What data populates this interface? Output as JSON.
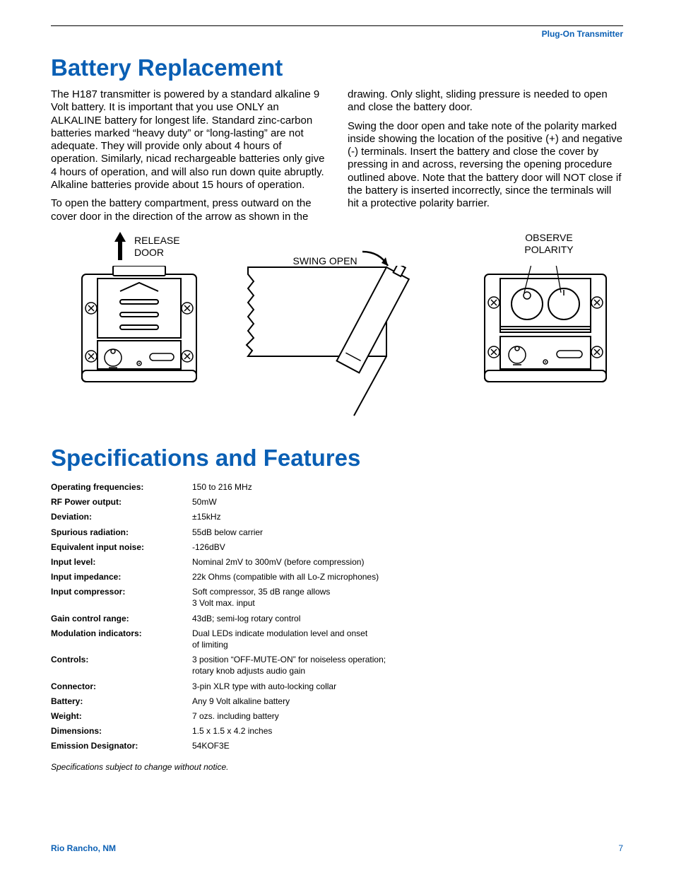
{
  "colors": {
    "accent": "#0a5fb4",
    "text": "#000000",
    "bg": "#ffffff"
  },
  "header": {
    "top_label": "Plug-On Transmitter"
  },
  "section1": {
    "title": "Battery Replacement",
    "p1": "The H187 transmitter is powered by a standard alkaline 9 Volt battery.  It is important that you use ONLY an ALKALINE battery for longest life.  Standard zinc-carbon batteries marked “heavy duty” or “long-lasting” are not adequate.  They will provide only about 4 hours of operation.  Similarly, nicad rechargeable batteries only give 4 hours of operation, and will also run down quite abruptly.  Alkaline batteries provide about 15 hours of operation.",
    "p2_left": "To open the battery compartment, press outward on the cover door in the direction of the arrow as shown in the",
    "p2_right_a": "drawing.  Only slight, sliding pressure is needed to open and close the battery door.",
    "p2_right_b": "Swing the door open and take note of the polarity marked inside showing the location of the positive (+) and negative (-) terminals.  Insert the battery and close the cover by pressing in and across, reversing the opening procedure outlined above.  Note that the battery door will NOT close if the battery is inserted incorrectly, since the terminals will hit a protective polarity barrier."
  },
  "diagrams": {
    "d1_label_a": "RELEASE",
    "d1_label_b": "DOOR",
    "d2_label": "SWING OPEN",
    "d3_label_a": "OBSERVE",
    "d3_label_b": "POLARITY"
  },
  "section2": {
    "title": "Specifications and Features",
    "rows": [
      {
        "label": "Operating frequencies:",
        "value": "150 to 216 MHz"
      },
      {
        "label": "RF Power output:",
        "value": "50mW"
      },
      {
        "label": "Deviation:",
        "value": "±15kHz"
      },
      {
        "label": "Spurious radiation:",
        "value": "55dB below carrier"
      },
      {
        "label": "Equivalent input noise:",
        "value": "-126dBV"
      },
      {
        "label": "Input level:",
        "value": "Nominal 2mV to 300mV   (before compression)"
      },
      {
        "label": "Input impedance:",
        "value": "22k Ohms (compatible with all Lo-Z microphones)"
      },
      {
        "label": "Input compressor:",
        "value": "Soft compressor, 35 dB range allows\n3 Volt max. input"
      },
      {
        "label": "Gain control range:",
        "value": "43dB; semi-log rotary control"
      },
      {
        "label": "Modulation indicators:",
        "value": "Dual LEDs indicate modulation level and onset\nof limiting"
      },
      {
        "label": "Controls:",
        "value": "3 position “OFF-MUTE-ON” for noiseless operation;\nrotary knob adjusts audio gain"
      },
      {
        "label": "Connector:",
        "value": "3-pin XLR type with auto-locking collar"
      },
      {
        "label": "Battery:",
        "value": "Any 9 Volt alkaline battery"
      },
      {
        "label": "Weight:",
        "value": "7 ozs. including battery"
      },
      {
        "label": "Dimensions:",
        "value": "1.5 x 1.5 x 4.2 inches"
      },
      {
        "label": "Emission Designator:",
        "value": "54KOF3E"
      }
    ],
    "note": "Specifications subject to change without notice."
  },
  "footer": {
    "location": "Rio Rancho, NM",
    "page": "7"
  }
}
